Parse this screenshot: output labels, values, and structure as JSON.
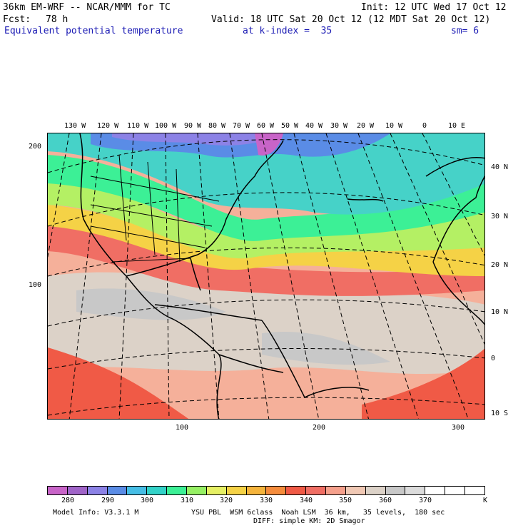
{
  "header": {
    "model_title": "36km EM-WRF -- NCAR/MMM for TC",
    "init": "Init: 12 UTC Wed 17 Oct 12",
    "fcst_label": "Fcst:",
    "fcst_value": "78 h",
    "valid": "Valid: 18 UTC Sat 20 Oct 12 (12 MDT Sat 20 Oct 12)",
    "field_name": "Equivalent potential temperature",
    "kindex": "at k-index =  35",
    "smoothing": "sm= 6"
  },
  "map": {
    "lon_labels": [
      "130 W",
      "120 W",
      "110 W",
      "100 W",
      "90 W",
      "80 W",
      "70 W",
      "60 W",
      "50 W",
      "40 W",
      "30 W",
      "20 W",
      "10 W",
      "0",
      "10 E"
    ],
    "lat_labels": [
      "40 N",
      "30 N",
      "20 N",
      "10 N",
      "0",
      "10 S"
    ],
    "grid_y_labels": [
      "200",
      "100"
    ],
    "grid_x_labels": [
      "100",
      "200",
      "300"
    ]
  },
  "colorbar": {
    "colors": [
      "#c864c8",
      "#a064c8",
      "#8c82e6",
      "#5a8ce6",
      "#46bee6",
      "#32d2c8",
      "#3cf096",
      "#96f064",
      "#e6f064",
      "#f5d246",
      "#f5b43c",
      "#f58c3c",
      "#f05a46",
      "#f06e64",
      "#f5a08c",
      "#f0c8b4",
      "#dcd2c8",
      "#c8c8c8",
      "#dcdcdc",
      "#ffffff",
      "#ffffff",
      "#ffffff"
    ],
    "labels": [
      "280",
      "290",
      "300",
      "310",
      "320",
      "330",
      "340",
      "350",
      "360",
      "370"
    ],
    "unit": "K"
  },
  "footer": {
    "model_info": "Model Info: V3.3.1 M",
    "physics": "YSU PBL  WSM 6class  Noah LSM  36 km,   35 levels,  180 sec",
    "physics2": "DIFF: simple KM: 2D Smagor"
  }
}
